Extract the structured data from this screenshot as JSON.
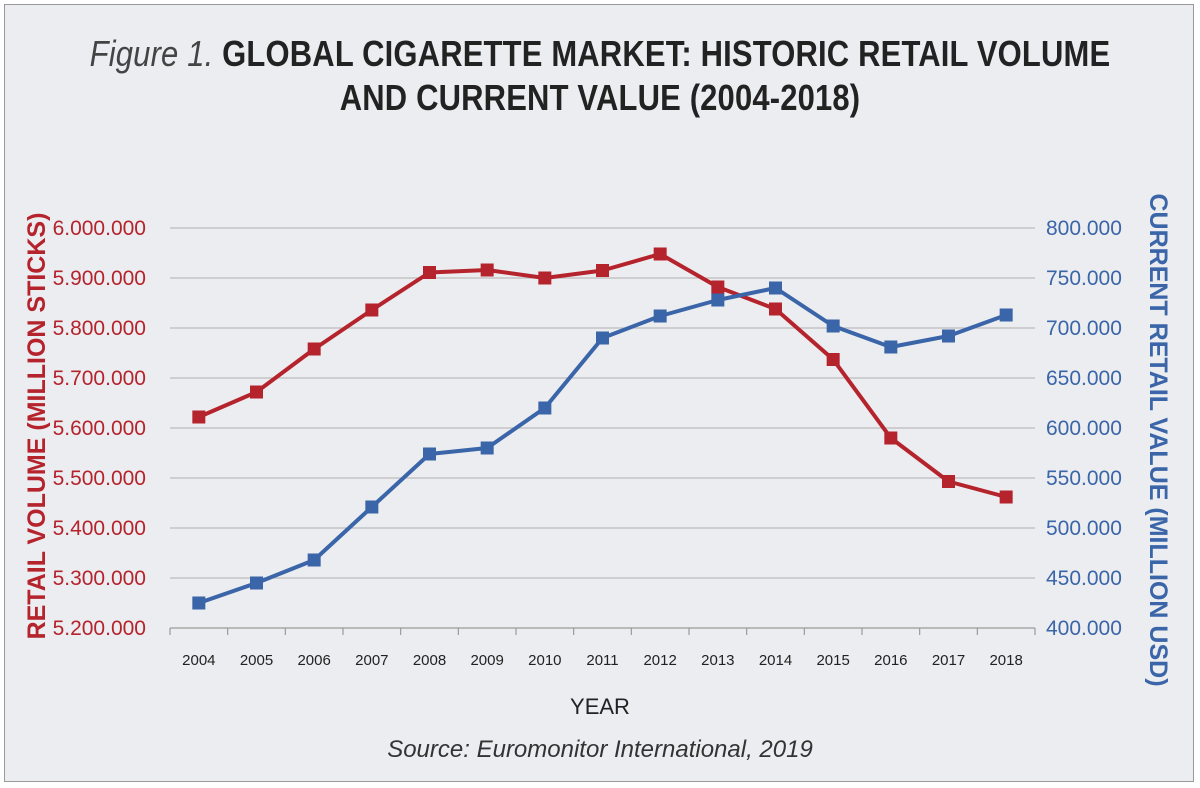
{
  "figure": {
    "prefix": "Figure 1.",
    "title_line1": "GLOBAL CIGARETTE MARKET: HISTORIC RETAIL VOLUME",
    "title_line2": "AND CURRENT VALUE (2004-2018)",
    "source": "Source: Euromonitor International, 2019"
  },
  "chart_data": {
    "type": "line",
    "x": [
      "2004",
      "2005",
      "2006",
      "2007",
      "2008",
      "2009",
      "2010",
      "2011",
      "2012",
      "2013",
      "2014",
      "2015",
      "2016",
      "2017",
      "2018"
    ],
    "xlabel": "YEAR",
    "ylabel_left": "RETAIL VOLUME (MILLION STICKS)",
    "ylabel_right": "CURRENT RETAIL VALUE (MILLION USD)",
    "ylim_left": [
      5200000,
      6000000
    ],
    "ylim_right": [
      400000,
      800000
    ],
    "yticks_left": [
      "5.200.000",
      "5.300.000",
      "5.400.000",
      "5.500.000",
      "5.600.000",
      "5.700.000",
      "5.800.000",
      "5.900.000",
      "6.000.000"
    ],
    "yticks_right": [
      "400.000",
      "450.000",
      "500.000",
      "550.000",
      "600.000",
      "650.000",
      "700.000",
      "750.000",
      "800.000"
    ],
    "grid": true,
    "series": [
      {
        "axis": "left",
        "color": "#b5232c",
        "marker": "square",
        "values": [
          5622000,
          5672000,
          5758000,
          5836000,
          5911000,
          5916000,
          5900000,
          5915000,
          5948000,
          5882000,
          5838000,
          5737000,
          5580000,
          5493000,
          5462000
        ]
      },
      {
        "axis": "right",
        "color": "#3a65a8",
        "marker": "square",
        "values": [
          425000,
          445000,
          468000,
          521000,
          574000,
          580000,
          620000,
          690000,
          712000,
          728000,
          740000,
          702000,
          681000,
          692000,
          713000
        ]
      }
    ]
  }
}
